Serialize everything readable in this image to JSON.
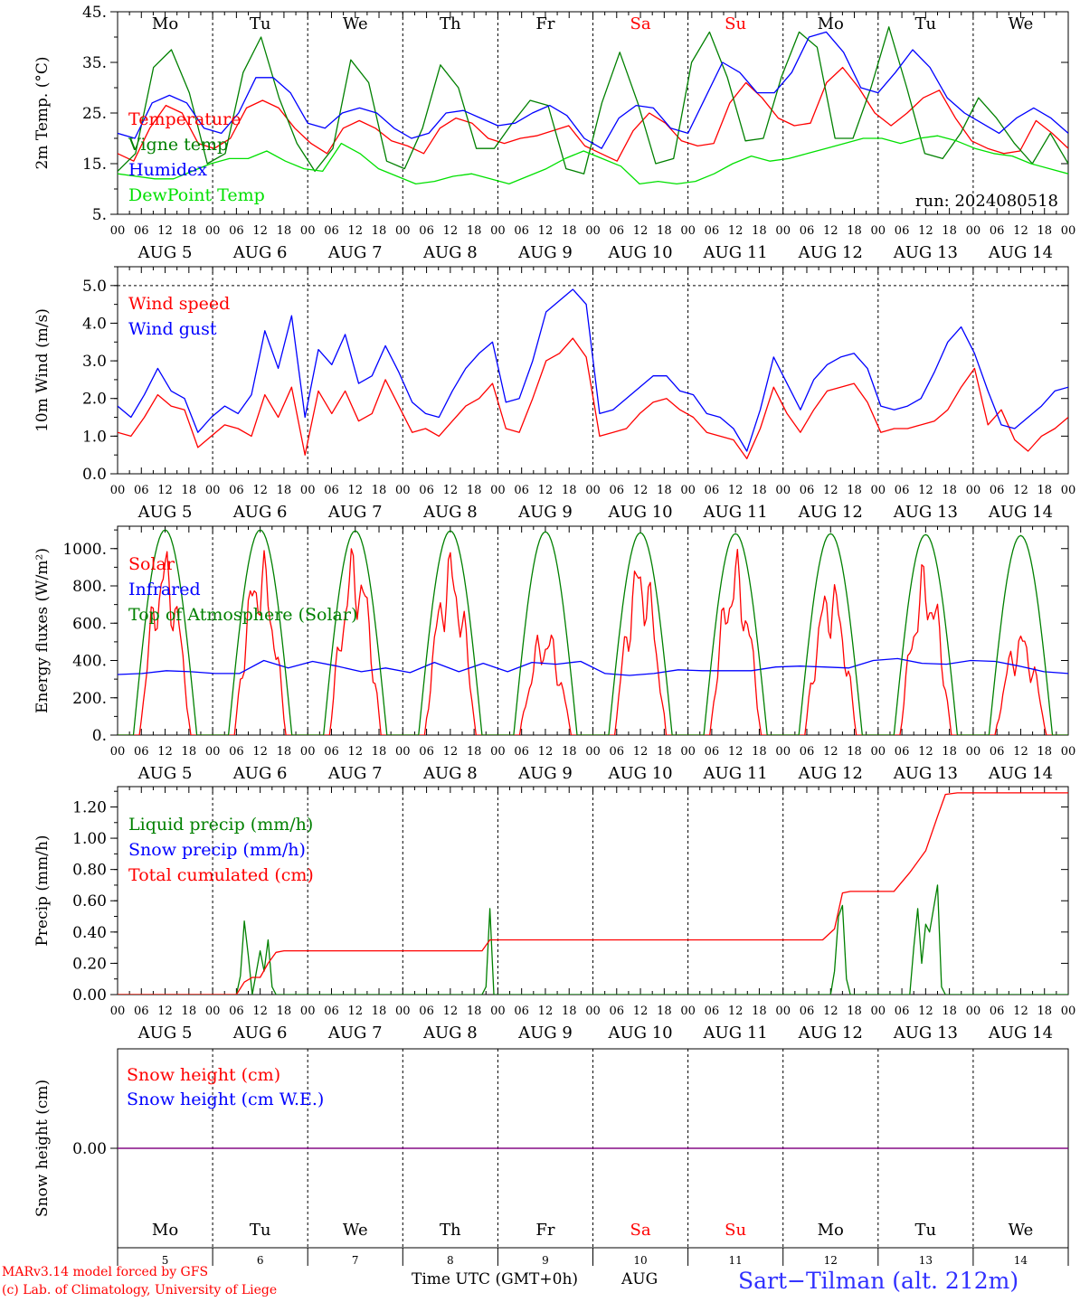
{
  "header": {
    "run_label": "run: 2024080518"
  },
  "footer": {
    "model_credit": "MARv3.14 model forced by GFS",
    "lab_credit": "(c) Lab. of Climatology, University of Liege",
    "xaxis_title": "Time UTC (GMT+0h)",
    "month": "AUG",
    "station": "Sart−Tilman (alt. 212m)"
  },
  "colors": {
    "red": "#ff0000",
    "blue": "#0000ff",
    "green": "#008000",
    "light_green": "#00e000",
    "purple": "#800080",
    "weekend": "#ff0000",
    "grid": "#000000"
  },
  "days": [
    {
      "dow": "Mo",
      "date": "AUG  5",
      "num": "5",
      "weekend": false
    },
    {
      "dow": "Tu",
      "date": "AUG  6",
      "num": "6",
      "weekend": false
    },
    {
      "dow": "We",
      "date": "AUG  7",
      "num": "7",
      "weekend": false
    },
    {
      "dow": "Th",
      "date": "AUG  8",
      "num": "8",
      "weekend": false
    },
    {
      "dow": "Fr",
      "date": "AUG  9",
      "num": "9",
      "weekend": false
    },
    {
      "dow": "Sa",
      "date": "AUG 10",
      "num": "10",
      "weekend": true
    },
    {
      "dow": "Su",
      "date": "AUG 11",
      "num": "11",
      "weekend": true
    },
    {
      "dow": "Mo",
      "date": "AUG 12",
      "num": "12",
      "weekend": false
    },
    {
      "dow": "Tu",
      "date": "AUG 13",
      "num": "13",
      "weekend": false
    },
    {
      "dow": "We",
      "date": "AUG 14",
      "num": "14",
      "weekend": false
    }
  ],
  "hour_ticks": [
    "00",
    "06",
    "12",
    "18"
  ],
  "chart_data": [
    {
      "type": "line",
      "ylabel": "2m Temp. (°C)",
      "ylim": [
        5,
        45
      ],
      "yticks": [
        "5.",
        "15.",
        "25.",
        "35.",
        "45."
      ],
      "x_hours_start": 0,
      "x_hours_step": 6,
      "x_days": 10,
      "series": [
        {
          "name": "Temperature",
          "color": "red",
          "values": [
            17,
            15.5,
            22,
            26.5,
            25,
            19,
            18,
            20,
            26,
            27.5,
            26,
            22,
            19,
            17,
            22,
            23.5,
            22,
            19.5,
            18.5,
            17,
            22,
            24,
            23,
            20,
            19,
            20,
            20.5,
            21.5,
            22.5,
            18.5,
            17,
            15.5,
            21.5,
            25,
            23,
            19.5,
            18.5,
            19,
            27,
            31,
            28,
            24,
            22.5,
            23,
            31,
            34,
            30,
            25,
            22.5,
            25,
            28,
            29.5,
            24,
            19.5,
            18,
            17,
            17.5,
            23.5,
            21,
            18
          ]
        },
        {
          "name": "Vigne temp",
          "color": "green",
          "values": [
            13.5,
            17,
            34,
            37.5,
            29,
            15,
            17,
            33,
            40,
            28,
            19,
            13.5,
            18,
            35.5,
            31,
            15.5,
            14,
            22,
            34.5,
            30,
            18,
            18,
            23,
            27.5,
            26.5,
            14,
            13,
            27,
            37,
            27,
            15,
            16,
            35,
            41,
            32,
            19.5,
            20,
            32,
            41,
            38,
            20,
            20,
            30,
            42,
            30,
            17,
            16,
            21,
            28,
            24,
            19,
            15,
            21,
            15
          ]
        },
        {
          "name": "Humidex",
          "color": "blue",
          "values": [
            21,
            20,
            27,
            28.5,
            27,
            22,
            21,
            25,
            32,
            32,
            29,
            23,
            22,
            25,
            26,
            25,
            22,
            20,
            21,
            25,
            25.5,
            24,
            22.5,
            23,
            25,
            26.5,
            24.5,
            20,
            18,
            24,
            26.5,
            26,
            22,
            21,
            28,
            35,
            33,
            29,
            29,
            33,
            40,
            41,
            37,
            30,
            29,
            33,
            37.5,
            34,
            28,
            25,
            23,
            21,
            24,
            26,
            24,
            21
          ]
        },
        {
          "name": "DewPoint Temp",
          "color": "light_green",
          "values": [
            13,
            12.5,
            12,
            12,
            13.5,
            15,
            16,
            16,
            17.5,
            15.5,
            14,
            13.5,
            19,
            17,
            14,
            12.5,
            11,
            11.5,
            12.5,
            13,
            12,
            11,
            12.5,
            14,
            16,
            17.5,
            16,
            14.5,
            11,
            11.5,
            11,
            11.5,
            13,
            15,
            16.5,
            15.5,
            16,
            17,
            18,
            19,
            20,
            20,
            19,
            20,
            20.5,
            19.5,
            18,
            17,
            16.5,
            15,
            14,
            13
          ]
        }
      ]
    },
    {
      "type": "line",
      "ylabel": "10m Wind (m/s)",
      "ylim": [
        0,
        5.5
      ],
      "yticks": [
        "0.0",
        "1.0",
        "2.0",
        "3.0",
        "4.0",
        "5.0"
      ],
      "series": [
        {
          "name": "Wind speed",
          "color": "red",
          "values": [
            1.1,
            1.0,
            1.5,
            2.1,
            1.8,
            1.7,
            0.7,
            1.0,
            1.3,
            1.2,
            1.0,
            2.1,
            1.5,
            2.3,
            0.5,
            2.2,
            1.6,
            2.2,
            1.4,
            1.6,
            2.5,
            1.8,
            1.1,
            1.2,
            1.0,
            1.4,
            1.8,
            2.0,
            2.4,
            1.2,
            1.1,
            2.0,
            3.0,
            3.2,
            3.6,
            3.1,
            1.0,
            1.1,
            1.2,
            1.6,
            1.9,
            2.0,
            1.7,
            1.5,
            1.1,
            1.0,
            0.9,
            0.4,
            1.2,
            2.3,
            1.6,
            1.1,
            1.7,
            2.2,
            2.3,
            2.4,
            1.9,
            1.1,
            1.2,
            1.2,
            1.3,
            1.4,
            1.7,
            2.3,
            2.8,
            1.3,
            1.7,
            0.9,
            0.6,
            1.0,
            1.2,
            1.5
          ]
        },
        {
          "name": "Wind gust",
          "color": "blue",
          "values": [
            1.8,
            1.5,
            2.1,
            2.8,
            2.2,
            2.0,
            1.1,
            1.5,
            1.8,
            1.6,
            2.1,
            3.8,
            2.8,
            4.2,
            1.5,
            3.3,
            2.9,
            3.7,
            2.4,
            2.6,
            3.4,
            2.7,
            1.9,
            1.6,
            1.5,
            2.2,
            2.8,
            3.2,
            3.5,
            1.9,
            2.0,
            3.0,
            4.3,
            4.6,
            4.9,
            4.5,
            1.6,
            1.7,
            2.0,
            2.3,
            2.6,
            2.6,
            2.2,
            2.1,
            1.6,
            1.5,
            1.2,
            0.6,
            1.7,
            3.1,
            2.4,
            1.7,
            2.5,
            2.9,
            3.1,
            3.2,
            2.8,
            1.8,
            1.7,
            1.8,
            2.0,
            2.7,
            3.5,
            3.9,
            3.2,
            2.2,
            1.3,
            1.2,
            1.5,
            1.8,
            2.2,
            2.3
          ]
        }
      ]
    },
    {
      "type": "line",
      "ylabel": "Energy fluxes (W/m²)",
      "ylim": [
        0,
        1100
      ],
      "yticks": [
        "0.",
        "200.",
        "400.",
        "600.",
        "800.",
        "1000."
      ],
      "series": [
        {
          "name": "Solar",
          "color": "red",
          "daily_peaks": [
            820,
            810,
            830,
            810,
            480,
            800,
            790,
            700,
            750,
            470
          ]
        },
        {
          "name": "Infrared",
          "color": "blue",
          "values": [
            325,
            330,
            345,
            340,
            330,
            330,
            400,
            360,
            395,
            370,
            340,
            360,
            335,
            390,
            340,
            385,
            340,
            390,
            380,
            395,
            330,
            320,
            330,
            350,
            345,
            345,
            345,
            365,
            370,
            365,
            360,
            400,
            410,
            385,
            380,
            400,
            395,
            370,
            340,
            330
          ]
        },
        {
          "name": "Top of Atmosphere (Solar)",
          "color": "green",
          "daily_peaks": [
            1100,
            1100,
            1095,
            1095,
            1090,
            1085,
            1080,
            1080,
            1075,
            1070
          ]
        }
      ]
    },
    {
      "type": "line",
      "ylabel": "Precip (mm/h)",
      "ylim": [
        0,
        1.3
      ],
      "yticks": [
        "0.00",
        "0.20",
        "0.40",
        "0.60",
        "0.80",
        "1.00",
        "1.20"
      ],
      "series": [
        {
          "name": "Liquid precip (mm/h)",
          "color": "green",
          "points": [
            [
              0,
              0
            ],
            [
              30,
              0
            ],
            [
              31,
              0.12
            ],
            [
              32,
              0.47
            ],
            [
              33,
              0.25
            ],
            [
              34,
              0
            ],
            [
              36,
              0.28
            ],
            [
              37,
              0.15
            ],
            [
              38,
              0.35
            ],
            [
              39,
              0.05
            ],
            [
              40,
              0
            ],
            [
              92,
              0
            ],
            [
              93,
              0.05
            ],
            [
              94,
              0.55
            ],
            [
              95,
              0
            ],
            [
              180,
              0
            ],
            [
              181,
              0.15
            ],
            [
              182,
              0.5
            ],
            [
              183,
              0.57
            ],
            [
              184,
              0.1
            ],
            [
              185,
              0
            ],
            [
              200,
              0
            ],
            [
              201,
              0.3
            ],
            [
              202,
              0.55
            ],
            [
              203,
              0.2
            ],
            [
              204,
              0.45
            ],
            [
              205,
              0.4
            ],
            [
              206,
              0.55
            ],
            [
              207,
              0.7
            ],
            [
              208,
              0.05
            ],
            [
              209,
              0
            ],
            [
              240,
              0
            ]
          ]
        },
        {
          "name": "Snow precip (mm/h)",
          "color": "blue",
          "points": []
        },
        {
          "name": "Total cumulated (cm)",
          "color": "red",
          "points": [
            [
              0,
              0
            ],
            [
              30,
              0
            ],
            [
              32,
              0.08
            ],
            [
              34,
              0.11
            ],
            [
              36,
              0.11
            ],
            [
              38,
              0.2
            ],
            [
              40,
              0.27
            ],
            [
              42,
              0.28
            ],
            [
              92,
              0.28
            ],
            [
              94,
              0.35
            ],
            [
              178,
              0.35
            ],
            [
              181,
              0.42
            ],
            [
              183,
              0.65
            ],
            [
              185,
              0.66
            ],
            [
              196,
              0.66
            ],
            [
              200,
              0.78
            ],
            [
              204,
              0.92
            ],
            [
              207,
              1.14
            ],
            [
              209,
              1.28
            ],
            [
              212,
              1.29
            ],
            [
              240,
              1.29
            ]
          ]
        }
      ]
    },
    {
      "type": "line",
      "ylabel": "Snow height (cm)",
      "yticks": [
        "0.00"
      ],
      "series": [
        {
          "name": "Snow height (cm)",
          "color": "red",
          "values": [
            0,
            0
          ]
        },
        {
          "name": "Snow height (cm W.E.)",
          "color": "blue",
          "values": [
            0,
            0
          ]
        }
      ]
    }
  ]
}
